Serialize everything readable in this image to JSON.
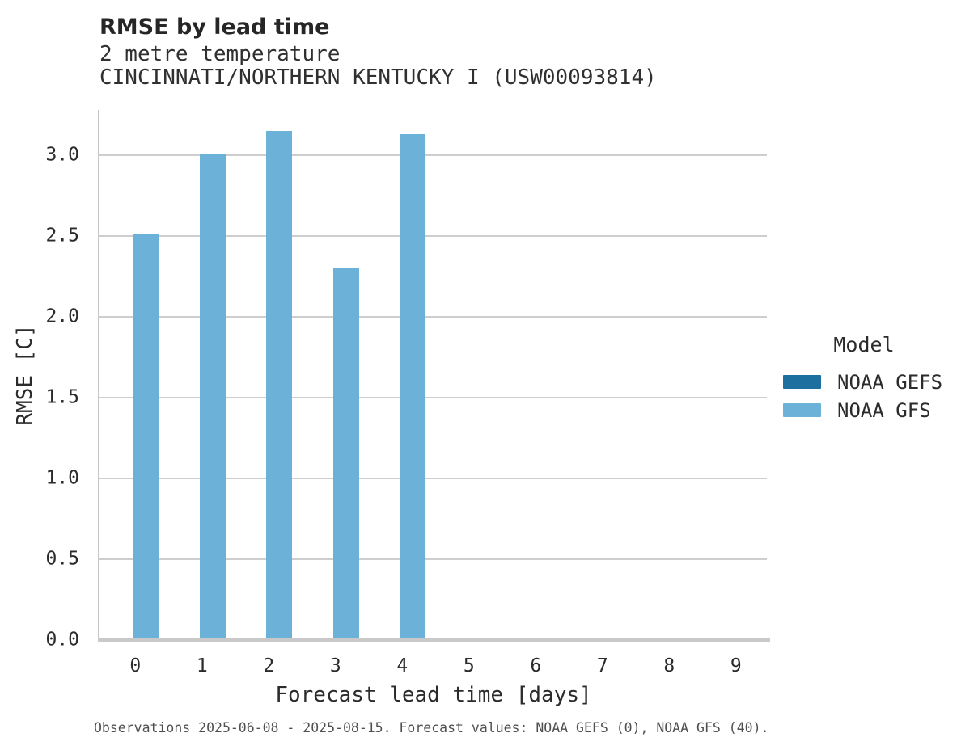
{
  "title": "RMSE by lead time",
  "subtitle1": "2 metre temperature",
  "subtitle2": "CINCINNATI/NORTHERN KENTUCKY I (USW00093814)",
  "footer": "Observations 2025-06-08 - 2025-08-15. Forecast values: NOAA GEFS (0), NOAA GFS (40).",
  "legend": {
    "title": "Model",
    "entries": [
      {
        "label": "NOAA GEFS",
        "color": "#1d6fa0"
      },
      {
        "label": "NOAA GFS",
        "color": "#6cb1d8"
      }
    ]
  },
  "chart_data": {
    "type": "bar",
    "title": "RMSE by lead time",
    "subtitle": [
      "2 metre temperature",
      "CINCINNATI/NORTHERN KENTUCKY I (USW00093814)"
    ],
    "xlabel": "Forecast lead time [days]",
    "ylabel": "RMSE [C]",
    "categories": [
      0,
      1,
      2,
      3,
      4,
      5,
      6,
      7,
      8,
      9
    ],
    "xtick_labels": [
      "0",
      "1",
      "2",
      "3",
      "4",
      "5",
      "6",
      "7",
      "8",
      "9"
    ],
    "series": [
      {
        "name": "NOAA GEFS",
        "color": "#1d6fa0",
        "values": [
          null,
          null,
          null,
          null,
          null,
          null,
          null,
          null,
          null,
          null
        ]
      },
      {
        "name": "NOAA GFS",
        "color": "#6cb1d8",
        "values": [
          2.51,
          3.01,
          3.15,
          2.3,
          3.13,
          null,
          null,
          null,
          null,
          null
        ]
      }
    ],
    "ylim": [
      0,
      3.285
    ],
    "yticks": [
      {
        "value": 0.0,
        "label": "0.0"
      },
      {
        "value": 0.5,
        "label": "0.5"
      },
      {
        "value": 1.0,
        "label": "1.0"
      },
      {
        "value": 1.5,
        "label": "1.5"
      },
      {
        "value": 2.0,
        "label": "2.0"
      },
      {
        "value": 2.5,
        "label": "2.5"
      },
      {
        "value": 3.0,
        "label": "3.0"
      }
    ],
    "grid": true,
    "legend_position": "right",
    "caption": "Observations 2025-06-08 - 2025-08-15. Forecast values: NOAA GEFS (0), NOAA GFS (40)."
  }
}
